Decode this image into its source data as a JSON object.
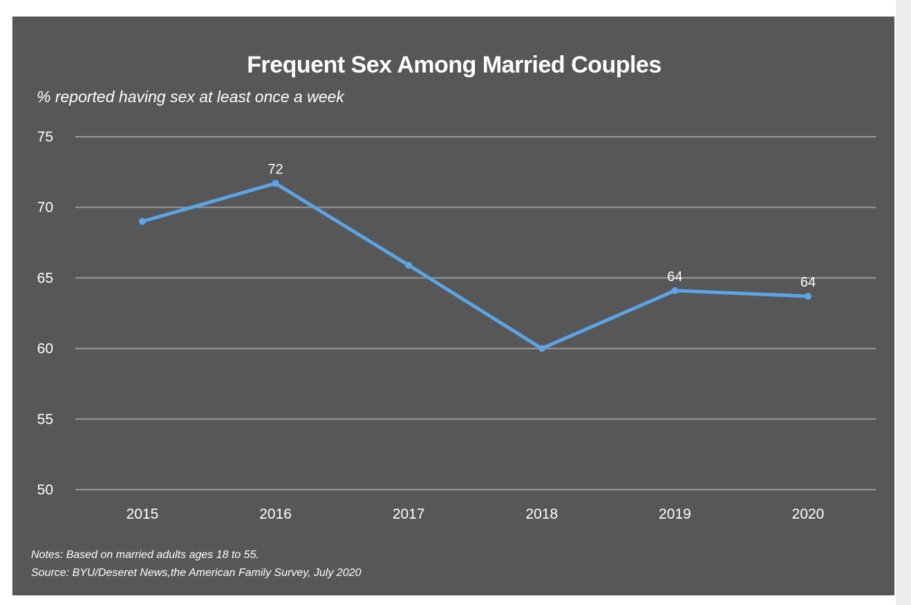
{
  "chart_data": {
    "type": "line",
    "title": "Frequent Sex Among Married Couples",
    "subtitle": "% reported having sex at least once a week",
    "categories": [
      "2015",
      "2016",
      "2017",
      "2018",
      "2019",
      "2020"
    ],
    "series": [
      {
        "values": [
          69,
          71.7,
          65.9,
          60,
          64.1,
          63.7
        ],
        "data_labels": [
          "",
          "72",
          "",
          "",
          "64",
          "64"
        ],
        "color": "#5ba4e6"
      }
    ],
    "ylim": [
      50,
      75
    ],
    "yticks": [
      "50",
      "55",
      "60",
      "65",
      "70",
      "75"
    ],
    "grid": true,
    "legend": "none"
  },
  "notes": {
    "line1": "Notes: Based on married adults ages 18 to 55.",
    "line2": "Source: BYU/Deseret News,the American Family Survey, July 2020"
  },
  "colors": {
    "background": "#575757",
    "gridline": "#9a9a9a",
    "text": "#ffffff",
    "line": "#5ba4e6"
  }
}
